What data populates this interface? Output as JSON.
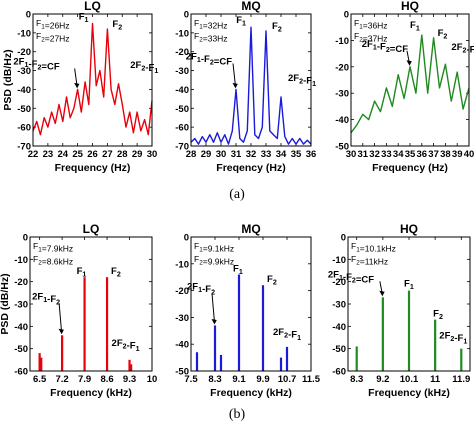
{
  "captions": [
    "(a)",
    "(b)"
  ],
  "colors": {
    "LQ": "#e8000b",
    "MQ": "#1a1adb",
    "HQ": "#1f8a1f"
  },
  "chart_data": [
    {
      "id": "a-LQ",
      "type": "line",
      "title": "LQ",
      "xlabel": "Frequency (Hz)",
      "ylabel": "PSD (dB/Hz)",
      "xlim": [
        22,
        30
      ],
      "ylim": [
        -70,
        0
      ],
      "xticks": [
        "22",
        "23",
        "24",
        "25",
        "26",
        "27",
        "28",
        "29",
        "30"
      ],
      "yticks": [
        "0",
        "-10",
        "-20",
        "-30",
        "-40",
        "-50",
        "-60",
        "-70"
      ],
      "info": [
        "F1=26Hz",
        "F2=27Hz"
      ],
      "x": [
        22,
        22.25,
        22.5,
        22.75,
        23,
        23.25,
        23.5,
        23.75,
        24,
        24.25,
        24.5,
        24.75,
        25,
        25.25,
        25.5,
        25.75,
        26,
        26.25,
        26.5,
        26.75,
        27,
        27.25,
        27.5,
        27.75,
        28,
        28.25,
        28.5,
        28.75,
        29,
        29.25,
        29.5,
        29.75,
        30
      ],
      "values": [
        -62,
        -57,
        -64,
        -55,
        -60,
        -52,
        -58,
        -48,
        -57,
        -44,
        -55,
        -50,
        -40,
        -52,
        -36,
        -48,
        -5,
        -38,
        -30,
        -44,
        -8,
        -40,
        -48,
        -37,
        -48,
        -60,
        -52,
        -63,
        -52,
        -62,
        -56,
        -64,
        -46
      ],
      "annotations": [
        {
          "label": "F1",
          "x": 26,
          "y": -5
        },
        {
          "label": "F2",
          "x": 27,
          "y": -8
        },
        {
          "label": "2F1-F2=CF",
          "x": 25,
          "y": -40
        },
        {
          "label": "2F2-F1",
          "x": 28,
          "y": -37
        }
      ]
    },
    {
      "id": "a-MQ",
      "type": "line",
      "title": "MQ",
      "xlabel": "Freqency (Hz)",
      "ylabel": "",
      "xlim": [
        28,
        36
      ],
      "ylim": [
        -70,
        0
      ],
      "xticks": [
        "28",
        "29",
        "30",
        "31",
        "32",
        "33",
        "34",
        "35",
        "36"
      ],
      "yticks": [
        "0",
        "-10",
        "-20",
        "-30",
        "-40",
        "-50",
        "-60",
        "-70"
      ],
      "info": [
        "F1=32Hz",
        "F2=33Hz"
      ],
      "x": [
        28,
        28.25,
        28.5,
        28.75,
        29,
        29.25,
        29.5,
        29.75,
        30,
        30.25,
        30.5,
        30.75,
        31,
        31.25,
        31.5,
        31.75,
        32,
        32.25,
        32.5,
        32.75,
        33,
        33.25,
        33.5,
        33.75,
        34,
        34.25,
        34.5,
        34.75,
        35,
        35.25,
        35.5,
        35.75,
        36
      ],
      "values": [
        -68,
        -66,
        -69,
        -65,
        -68,
        -64,
        -68,
        -63,
        -68,
        -64,
        -69,
        -62,
        -40,
        -66,
        -68,
        -62,
        -7,
        -64,
        -66,
        -60,
        -9,
        -62,
        -64,
        -66,
        -44,
        -65,
        -69,
        -66,
        -69,
        -66,
        -69,
        -67,
        -69
      ],
      "annotations": [
        {
          "label": "F1",
          "x": 32,
          "y": -7
        },
        {
          "label": "F2",
          "x": 33,
          "y": -9
        },
        {
          "label": "2F1-F2=CF",
          "x": 31,
          "y": -40
        },
        {
          "label": "2F2-F1",
          "x": 34,
          "y": -44
        }
      ]
    },
    {
      "id": "a-HQ",
      "type": "line",
      "title": "HQ",
      "xlabel": "Frequency (Hz)",
      "ylabel": "",
      "xlim": [
        30,
        40
      ],
      "ylim": [
        -50,
        0
      ],
      "xticks": [
        "30",
        "31",
        "32",
        "33",
        "34",
        "35",
        "36",
        "37",
        "38",
        "39",
        "40"
      ],
      "yticks": [
        "0",
        "-10",
        "-20",
        "-30",
        "-40",
        "-50"
      ],
      "info": [
        "F1=36Hz",
        "F2=37Hz"
      ],
      "x": [
        30,
        30.5,
        31,
        31.5,
        32,
        32.5,
        33,
        33.5,
        34,
        34.5,
        35,
        35.5,
        36,
        36.5,
        37,
        37.5,
        38,
        38.5,
        39,
        39.5,
        40
      ],
      "values": [
        -45,
        -42,
        -38,
        -40,
        -33,
        -37,
        -28,
        -35,
        -23,
        -32,
        -20,
        -30,
        -8,
        -30,
        -9,
        -28,
        -19,
        -33,
        -22,
        -36,
        -28
      ],
      "annotations": [
        {
          "label": "F1",
          "x": 36,
          "y": -8
        },
        {
          "label": "F2",
          "x": 37,
          "y": -9
        },
        {
          "label": "2F1-F2=CF",
          "x": 35,
          "y": -20
        },
        {
          "label": "2F2-F1",
          "x": 38,
          "y": -19
        }
      ]
    },
    {
      "id": "b-LQ",
      "type": "bar",
      "title": "LQ",
      "xlabel": "Frequency (kHz)",
      "ylabel": "PSD (dB/Hz)",
      "xlim": [
        6.2,
        10
      ],
      "ylim": [
        -60,
        0
      ],
      "xticks": [
        "6.5",
        "7.2",
        "7.9",
        "8.6",
        "9.3",
        "10"
      ],
      "yticks": [
        "0",
        "-10",
        "-20",
        "-30",
        "-40",
        "-50",
        "-60"
      ],
      "info": [
        "F1=7.9kHz",
        "F2=8.6kHz"
      ],
      "x": [
        6.5,
        6.55,
        7.2,
        7.9,
        8.6,
        9.3,
        9.35
      ],
      "values": [
        -52,
        -54,
        -44,
        -18,
        -18,
        -55,
        -57
      ],
      "annotations": [
        {
          "label": "F1",
          "x": 7.9,
          "y": -18
        },
        {
          "label": "F2",
          "x": 8.6,
          "y": -18
        },
        {
          "label": "2F1-F2",
          "x": 7.2,
          "y": -44
        },
        {
          "label": "2F2-F1",
          "x": 9.3,
          "y": -55
        }
      ]
    },
    {
      "id": "b-MQ",
      "type": "bar",
      "title": "MQ",
      "xlabel": "Frequency (kHz)",
      "ylabel": "",
      "xlim": [
        7.5,
        11.5
      ],
      "ylim": [
        -50,
        0
      ],
      "xticks": [
        "7.5",
        "8.3",
        "9.1",
        "9.9",
        "10.7",
        "11.5"
      ],
      "yticks": [
        "0",
        "-10",
        "-20",
        "-30",
        "-40",
        "-50"
      ],
      "info": [
        "F1=9.1kHz",
        "F2=9.9kHz"
      ],
      "x": [
        7.7,
        8.3,
        8.5,
        9.1,
        9.9,
        10.5,
        10.7
      ],
      "values": [
        -43,
        -33,
        -44,
        -14,
        -18,
        -45,
        -41
      ],
      "annotations": [
        {
          "label": "F1",
          "x": 9.1,
          "y": -14
        },
        {
          "label": "F2",
          "x": 9.9,
          "y": -18
        },
        {
          "label": "2F1-F2",
          "x": 8.3,
          "y": -33
        },
        {
          "label": "2F2-F1",
          "x": 10.7,
          "y": -41
        }
      ]
    },
    {
      "id": "b-HQ",
      "type": "bar",
      "title": "HQ",
      "xlabel": "Frequency (kHz)",
      "ylabel": "",
      "xlim": [
        8.0,
        12.2
      ],
      "ylim": [
        -60,
        0
      ],
      "xticks": [
        "8.3",
        "9.2",
        "10.1",
        "11",
        "11.9"
      ],
      "yticks": [
        "0",
        "-10",
        "-20",
        "-30",
        "-40",
        "-50",
        "-60"
      ],
      "info": [
        "F1=10.1kHz",
        "F2=11kHz"
      ],
      "x": [
        8.3,
        9.2,
        10.1,
        11,
        11.9
      ],
      "values": [
        -49,
        -27,
        -24,
        -37,
        -50
      ],
      "annotations": [
        {
          "label": "F1",
          "x": 10.1,
          "y": -24
        },
        {
          "label": "F2",
          "x": 11,
          "y": -37
        },
        {
          "label": "2F1-F2=CF",
          "x": 9.2,
          "y": -27
        },
        {
          "label": "2F2-F1",
          "x": 11.9,
          "y": -50
        }
      ]
    }
  ]
}
